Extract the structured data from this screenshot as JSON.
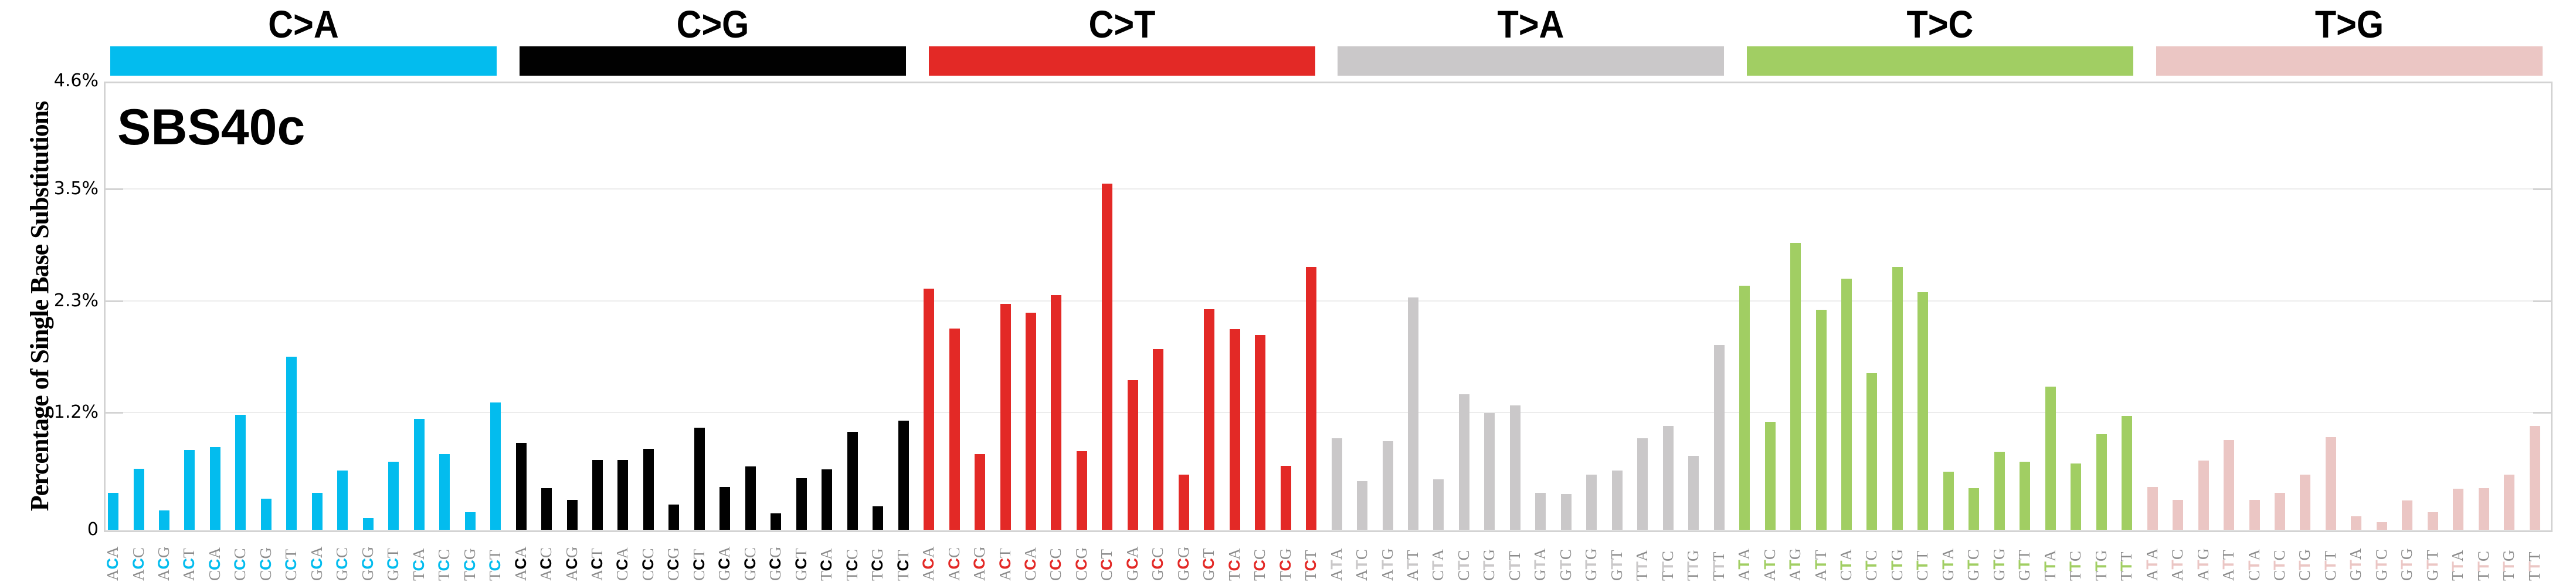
{
  "chart_data": {
    "type": "bar",
    "title": "SBS40c",
    "xlabel": "",
    "ylabel": "Percentage of Single Base Substitutions",
    "ylim": [
      0,
      4.6
    ],
    "y_ticks": [
      "0",
      "1.2%",
      "2.3%",
      "3.5%",
      "4.6%"
    ],
    "y_tick_values": [
      0,
      1.15,
      2.3,
      3.45,
      4.6
    ],
    "grid": true,
    "legend": "none",
    "categories_groups": [
      "C>A",
      "C>G",
      "C>T",
      "T>A",
      "T>C",
      "T>G"
    ],
    "series": [
      {
        "name": "C>A",
        "color": "#03bcee",
        "contexts": [
          "ACA",
          "ACC",
          "ACG",
          "ACT",
          "CCA",
          "CCC",
          "CCG",
          "CCT",
          "GCA",
          "GCC",
          "GCG",
          "GCT",
          "TCA",
          "TCC",
          "TCG",
          "TCT"
        ],
        "values": [
          0.38,
          0.63,
          0.2,
          0.82,
          0.85,
          1.18,
          0.32,
          1.78,
          0.38,
          0.61,
          0.12,
          0.7,
          1.14,
          0.78,
          0.18,
          1.31
        ]
      },
      {
        "name": "C>G",
        "color": "#010101",
        "contexts": [
          "ACA",
          "ACC",
          "ACG",
          "ACT",
          "CCA",
          "CCC",
          "CCG",
          "CCT",
          "GCA",
          "GCC",
          "GCG",
          "GCT",
          "TCA",
          "TCC",
          "TCG",
          "TCT"
        ],
        "values": [
          0.89,
          0.43,
          0.31,
          0.72,
          0.72,
          0.83,
          0.26,
          1.05,
          0.44,
          0.65,
          0.17,
          0.53,
          0.62,
          1.01,
          0.24,
          1.12
        ]
      },
      {
        "name": "C>T",
        "color": "#e32926",
        "contexts": [
          "ACA",
          "ACC",
          "ACG",
          "ACT",
          "CCA",
          "CCC",
          "CCG",
          "CCT",
          "GCA",
          "GCC",
          "GCG",
          "GCT",
          "TCA",
          "TCC",
          "TCG",
          "TCT"
        ],
        "values": [
          2.48,
          2.07,
          0.78,
          2.32,
          2.23,
          2.41,
          0.81,
          3.56,
          1.54,
          1.86,
          0.57,
          2.27,
          2.06,
          2.0,
          0.66,
          2.7
        ]
      },
      {
        "name": "T>A",
        "color": "#cac8c9",
        "contexts": [
          "ATA",
          "ATC",
          "ATG",
          "ATT",
          "CTA",
          "CTC",
          "CTG",
          "CTT",
          "GTA",
          "GTC",
          "GTG",
          "GTT",
          "TTA",
          "TTC",
          "TTG",
          "TTT"
        ],
        "values": [
          0.94,
          0.5,
          0.91,
          2.39,
          0.52,
          1.39,
          1.2,
          1.28,
          0.38,
          0.37,
          0.57,
          0.61,
          0.94,
          1.07,
          0.76,
          1.9
        ]
      },
      {
        "name": "T>C",
        "color": "#a1ce63",
        "contexts": [
          "ATA",
          "ATC",
          "ATG",
          "ATT",
          "CTA",
          "CTC",
          "CTG",
          "CTT",
          "GTA",
          "GTC",
          "GTG",
          "GTT",
          "TTA",
          "TTC",
          "TTG",
          "TTT"
        ],
        "values": [
          2.51,
          1.11,
          2.95,
          2.26,
          2.58,
          1.61,
          2.7,
          2.44,
          0.6,
          0.43,
          0.8,
          0.7,
          1.47,
          0.68,
          0.98,
          1.17
        ]
      },
      {
        "name": "T>G",
        "color": "#ebc6c4",
        "contexts": [
          "ATA",
          "ATC",
          "ATG",
          "ATT",
          "CTA",
          "CTC",
          "CTG",
          "CTT",
          "GTA",
          "GTC",
          "GTG",
          "GTT",
          "TTA",
          "TTC",
          "TTG",
          "TTT"
        ],
        "values": [
          0.44,
          0.31,
          0.71,
          0.92,
          0.31,
          0.38,
          0.57,
          0.95,
          0.14,
          0.08,
          0.3,
          0.18,
          0.42,
          0.43,
          0.57,
          1.07
        ]
      }
    ]
  },
  "header": {
    "groups": [
      {
        "label": "C>A",
        "color": "#03bcee"
      },
      {
        "label": "C>G",
        "color": "#010101"
      },
      {
        "label": "C>T",
        "color": "#e32926"
      },
      {
        "label": "T>A",
        "color": "#cac8c9"
      },
      {
        "label": "T>C",
        "color": "#a1ce63"
      },
      {
        "label": "T>G",
        "color": "#ebc6c4"
      }
    ]
  },
  "plot": {
    "signature_name": "SBS40c",
    "y_axis_label": "Percentage of Single Base Substitutions",
    "y_ticks": {
      "t0": "0",
      "t1": "1.2%",
      "t2": "2.3%",
      "t3": "3.5%",
      "t4": "4.6%"
    },
    "flank_color": "#8c8c8c",
    "frame_color": "#d3d3d3",
    "grid_color": "#ececec"
  }
}
